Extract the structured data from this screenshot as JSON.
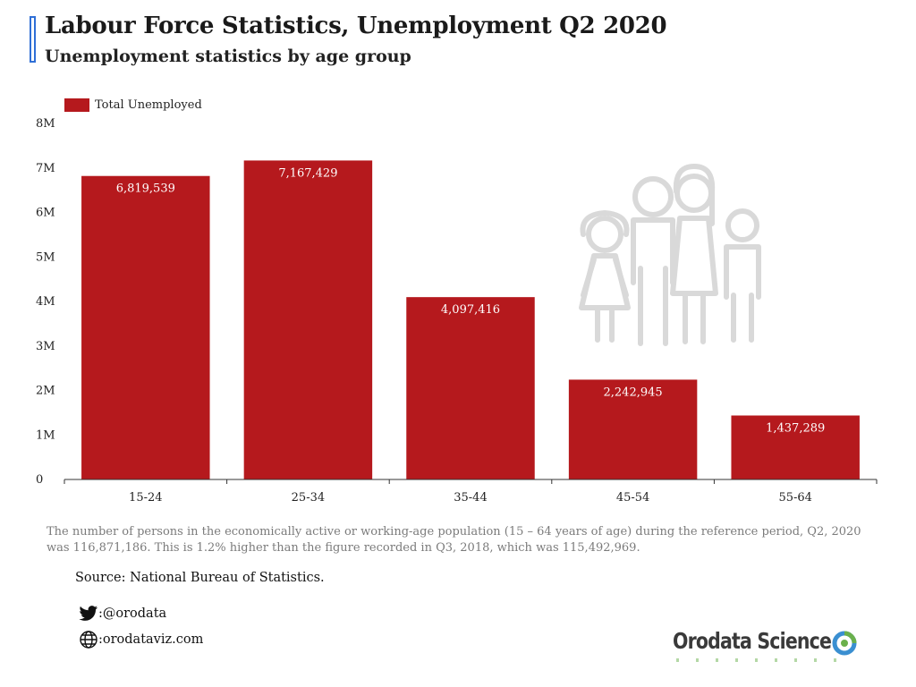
{
  "header": {
    "title": "Labour Force Statistics, Unemployment Q2 2020",
    "subtitle": "Unemployment statistics by age group"
  },
  "legend": {
    "label": "Total Unemployed"
  },
  "chart_data": {
    "type": "bar",
    "title": "Labour Force Statistics, Unemployment Q2 2020",
    "subtitle": "Unemployment statistics by age group",
    "categories": [
      "15-24",
      "25-34",
      "35-44",
      "45-54",
      "55-64"
    ],
    "series": [
      {
        "name": "Total Unemployed",
        "values": [
          6819539,
          7167429,
          4097416,
          2242945,
          1437289
        ]
      }
    ],
    "data_labels": [
      "6,819,539",
      "7,167,429",
      "4,097,416",
      "2,242,945",
      "1,437,289"
    ],
    "ylim": [
      0,
      8000000
    ],
    "yticks": [
      0,
      1000000,
      2000000,
      3000000,
      4000000,
      5000000,
      6000000,
      7000000,
      8000000
    ],
    "ytick_labels": [
      "0",
      "1M",
      "2M",
      "3M",
      "4M",
      "5M",
      "6M",
      "7M",
      "8M"
    ],
    "xlabel": "",
    "ylabel": "",
    "grid": false,
    "legend_position": "top-left",
    "bar_color": "#b5191d"
  },
  "footer": {
    "note": "The number of persons in the economically active or working-age population (15 – 64 years of age) during the reference period, Q2, 2020 was 116,871,186. This is 1.2% higher than the figure recorded in Q3, 2018, which was 115,492,969.",
    "source": "Source: National Bureau of Statistics.",
    "twitter": ":@orodata",
    "website": ":orodataviz.com",
    "brand": "Orodata Science"
  },
  "icons": {
    "twitter": "twitter-bird-icon",
    "website": "globe-icon",
    "logo": "orodata-logo-icon",
    "illustration": "family-icon"
  }
}
